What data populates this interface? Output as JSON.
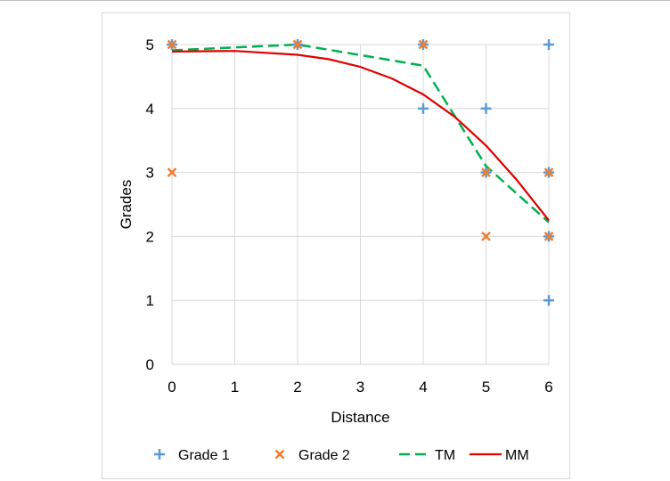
{
  "chart_data": {
    "type": "scatter",
    "title": "",
    "xlabel": "Distance",
    "ylabel": "Grades",
    "xlim": [
      0,
      6
    ],
    "ylim": [
      0,
      5
    ],
    "x_ticks": [
      "0",
      "1",
      "2",
      "3",
      "4",
      "5",
      "6"
    ],
    "y_ticks": [
      "0",
      "1",
      "2",
      "3",
      "4",
      "5"
    ],
    "grid": true,
    "legend_position": "bottom",
    "series": [
      {
        "name": "Grade 1",
        "kind": "scatter",
        "marker": "plus",
        "color": "#5b9bd5",
        "points": [
          [
            0,
            5
          ],
          [
            2,
            5
          ],
          [
            4,
            4
          ],
          [
            4,
            5
          ],
          [
            5,
            4
          ],
          [
            5,
            3
          ],
          [
            6,
            5
          ],
          [
            6,
            3
          ],
          [
            6,
            2
          ],
          [
            6,
            1
          ]
        ]
      },
      {
        "name": "Grade 2",
        "kind": "scatter",
        "marker": "cross",
        "color": "#ed7d31",
        "points": [
          [
            0,
            5
          ],
          [
            0,
            3
          ],
          [
            2,
            5
          ],
          [
            4,
            5
          ],
          [
            5,
            3
          ],
          [
            5,
            2
          ],
          [
            6,
            3
          ],
          [
            6,
            2
          ]
        ]
      },
      {
        "name": "TM",
        "kind": "line",
        "dash": true,
        "color": "#00b050",
        "points": [
          [
            0,
            4.91
          ],
          [
            2,
            5.0
          ],
          [
            4,
            4.67
          ],
          [
            5,
            3.1
          ],
          [
            6,
            2.22
          ]
        ]
      },
      {
        "name": "MM",
        "kind": "line",
        "dash": false,
        "color": "#e00000",
        "points": [
          [
            0,
            4.89
          ],
          [
            1,
            4.9
          ],
          [
            2,
            4.84
          ],
          [
            2.5,
            4.77
          ],
          [
            3,
            4.65
          ],
          [
            3.5,
            4.47
          ],
          [
            4,
            4.22
          ],
          [
            4.5,
            3.87
          ],
          [
            5,
            3.42
          ],
          [
            5.5,
            2.87
          ],
          [
            6,
            2.25
          ]
        ]
      }
    ]
  }
}
